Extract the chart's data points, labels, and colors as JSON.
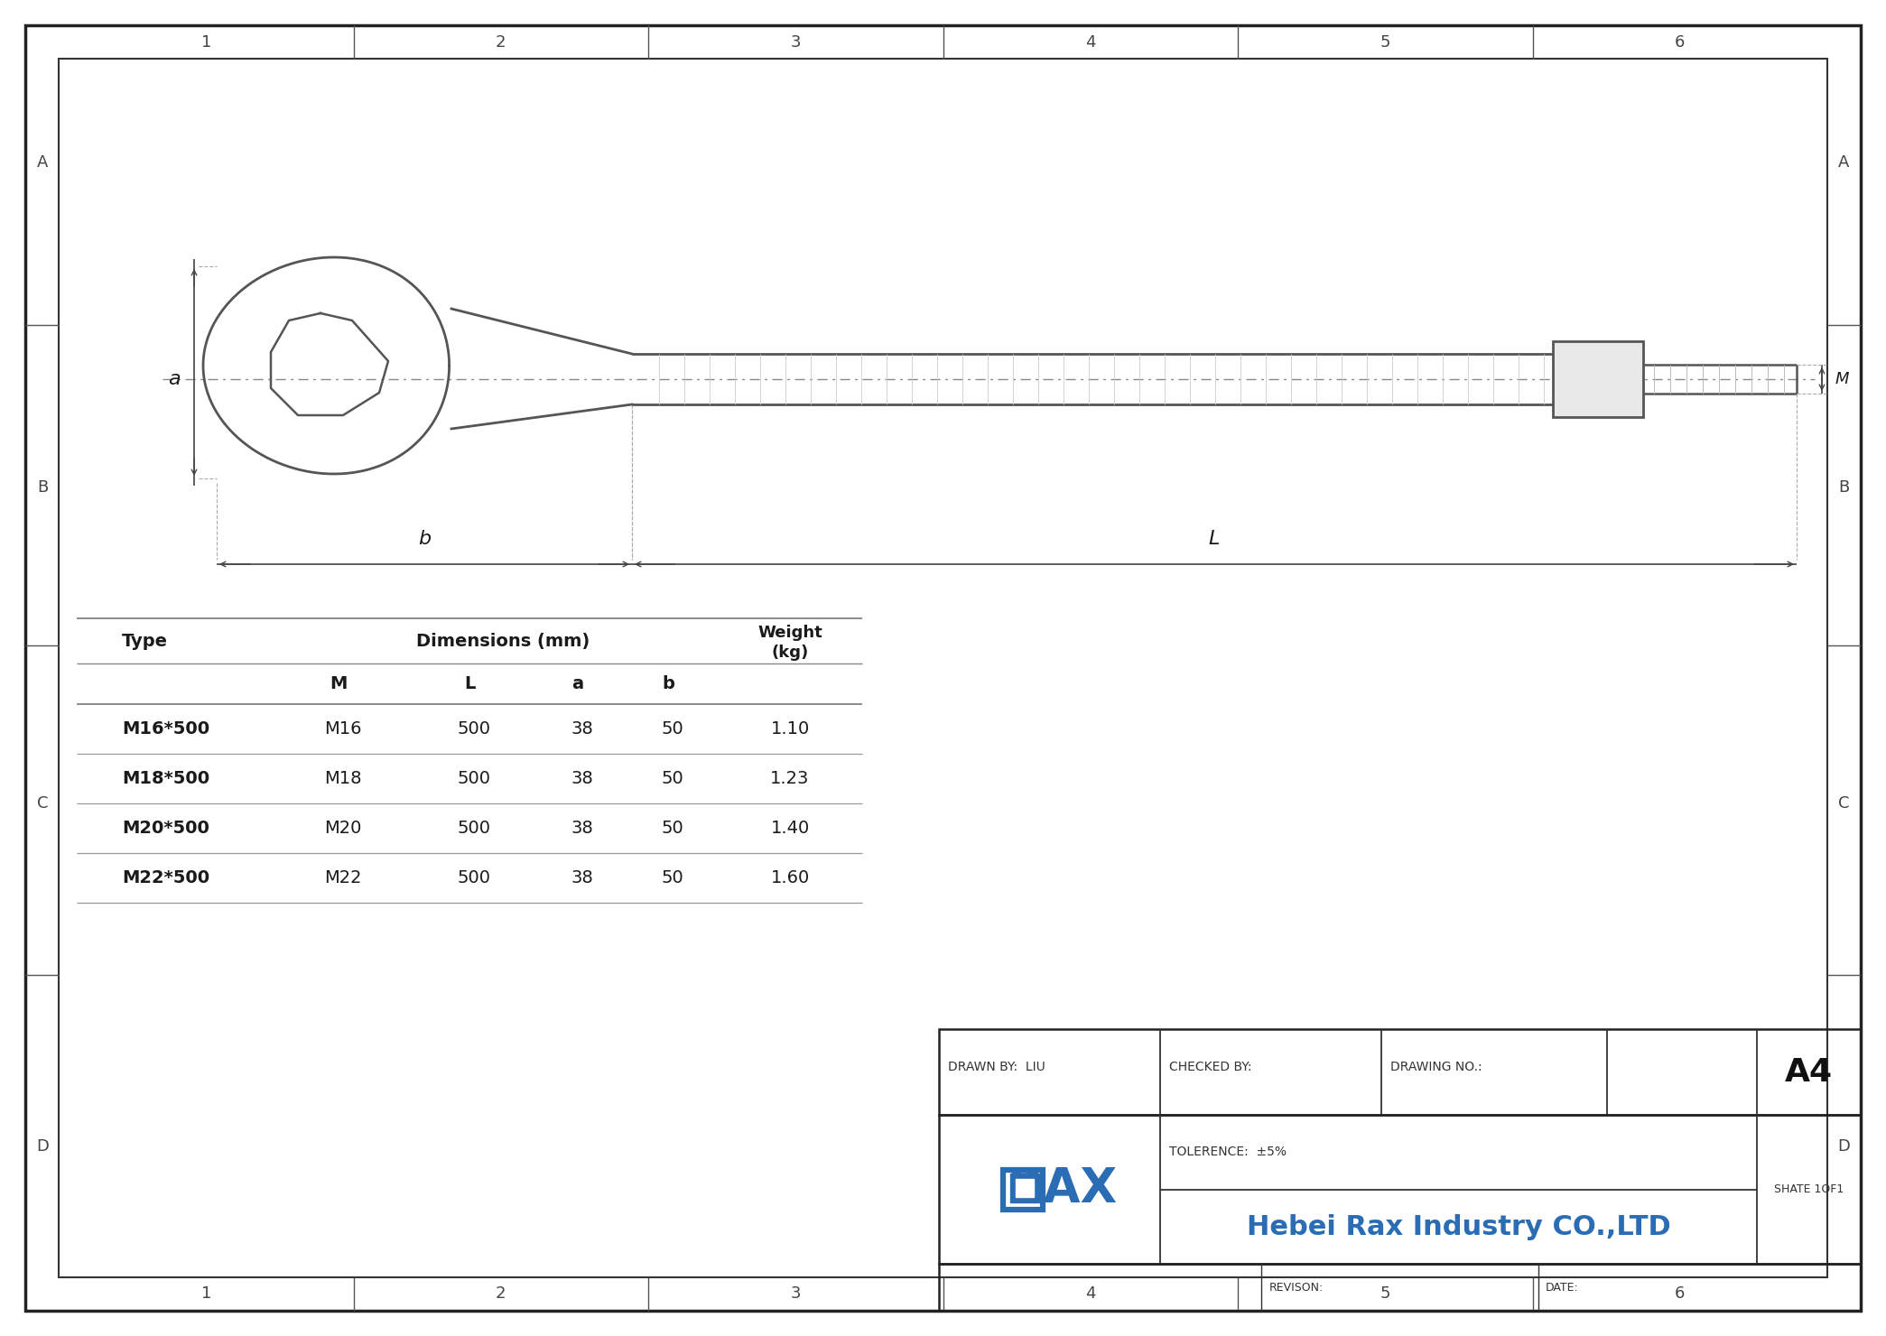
{
  "bg_color": "#ffffff",
  "border_color": "#2a2a2a",
  "table_rows": [
    [
      "M16*500",
      "M16",
      "500",
      "38",
      "50",
      "1.10"
    ],
    [
      "M18*500",
      "M18",
      "500",
      "38",
      "50",
      "1.23"
    ],
    [
      "M20*500",
      "M20",
      "500",
      "38",
      "50",
      "1.40"
    ],
    [
      "M22*500",
      "M22",
      "500",
      "38",
      "50",
      "1.60"
    ]
  ],
  "drawn_by": "DRAWN BY:  LIU",
  "checked_by": "CHECKED BY:",
  "drawing_no": "DRAWING NO.:",
  "paper_size": "A4",
  "tolerance": "TOLERENCE:  ±5%",
  "company": "Hebei Rax Industry CO.,LTD",
  "shate": "SHATE 1OF1",
  "revison": "REVISON:",
  "date": "DATE:",
  "border_nums_top": [
    "1",
    "2",
    "3",
    "4",
    "5",
    "6"
  ],
  "border_letters": [
    "A",
    "B",
    "C",
    "D"
  ],
  "logo_color": "#2a6db5",
  "logo_color2": "#4a8acc",
  "dim_line_color": "#444444",
  "drawing_line_color": "#555555",
  "centerline_color": "#888888",
  "table_line_color": "#888888",
  "text_color": "#1a1a1a",
  "subtext_color": "#333333"
}
